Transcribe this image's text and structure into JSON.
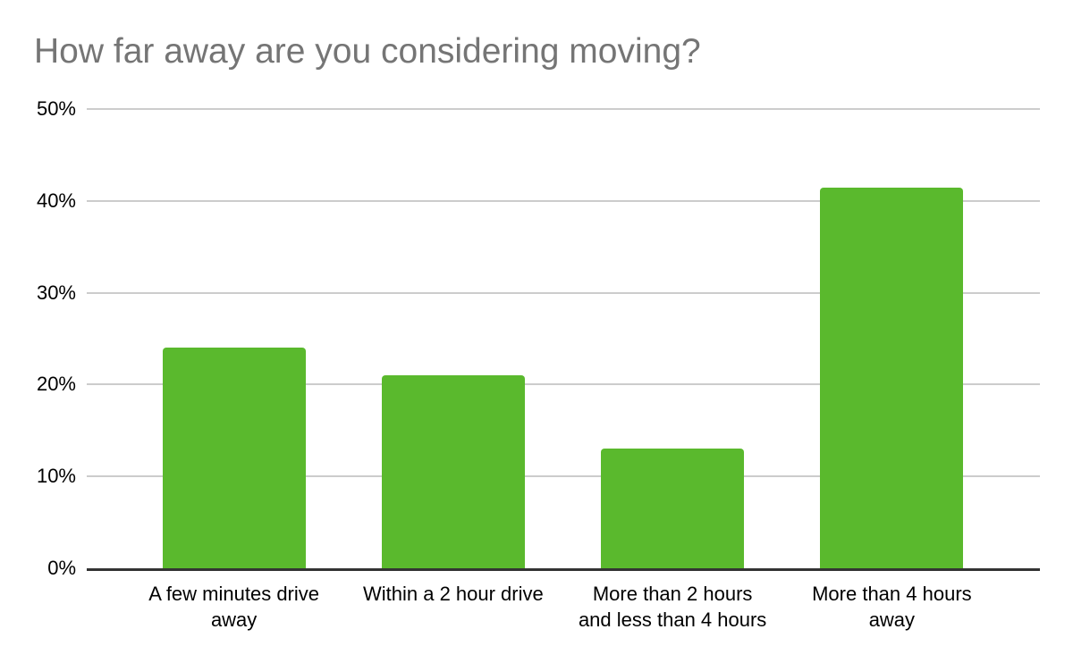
{
  "chart_data": {
    "type": "bar",
    "title": "How far away are you considering moving?",
    "categories": [
      "A few minutes drive away",
      "Within a 2 hour drive",
      "More than 2 hours and less than 4 hours",
      "More than 4 hours away"
    ],
    "category_lines": [
      [
        "A few minutes drive",
        "away"
      ],
      [
        "Within a 2 hour drive"
      ],
      [
        "More than 2 hours",
        "and less than 4 hours"
      ],
      [
        "More than 4 hours",
        "away"
      ]
    ],
    "values": [
      24,
      21,
      13,
      41.4
    ],
    "xlabel": "",
    "ylabel": "",
    "ylim": [
      0,
      50
    ],
    "y_ticks": [
      0,
      10,
      20,
      30,
      40,
      50
    ],
    "y_tick_labels": [
      "0%",
      "10%",
      "20%",
      "30%",
      "40%",
      "50%"
    ],
    "grid": true,
    "legend": false
  },
  "style": {
    "bar_color": "#5ab92d",
    "title_color": "#757575",
    "gridline_color": "#cccccc",
    "baseline_color": "#333333",
    "tick_label_color": "#000000"
  }
}
